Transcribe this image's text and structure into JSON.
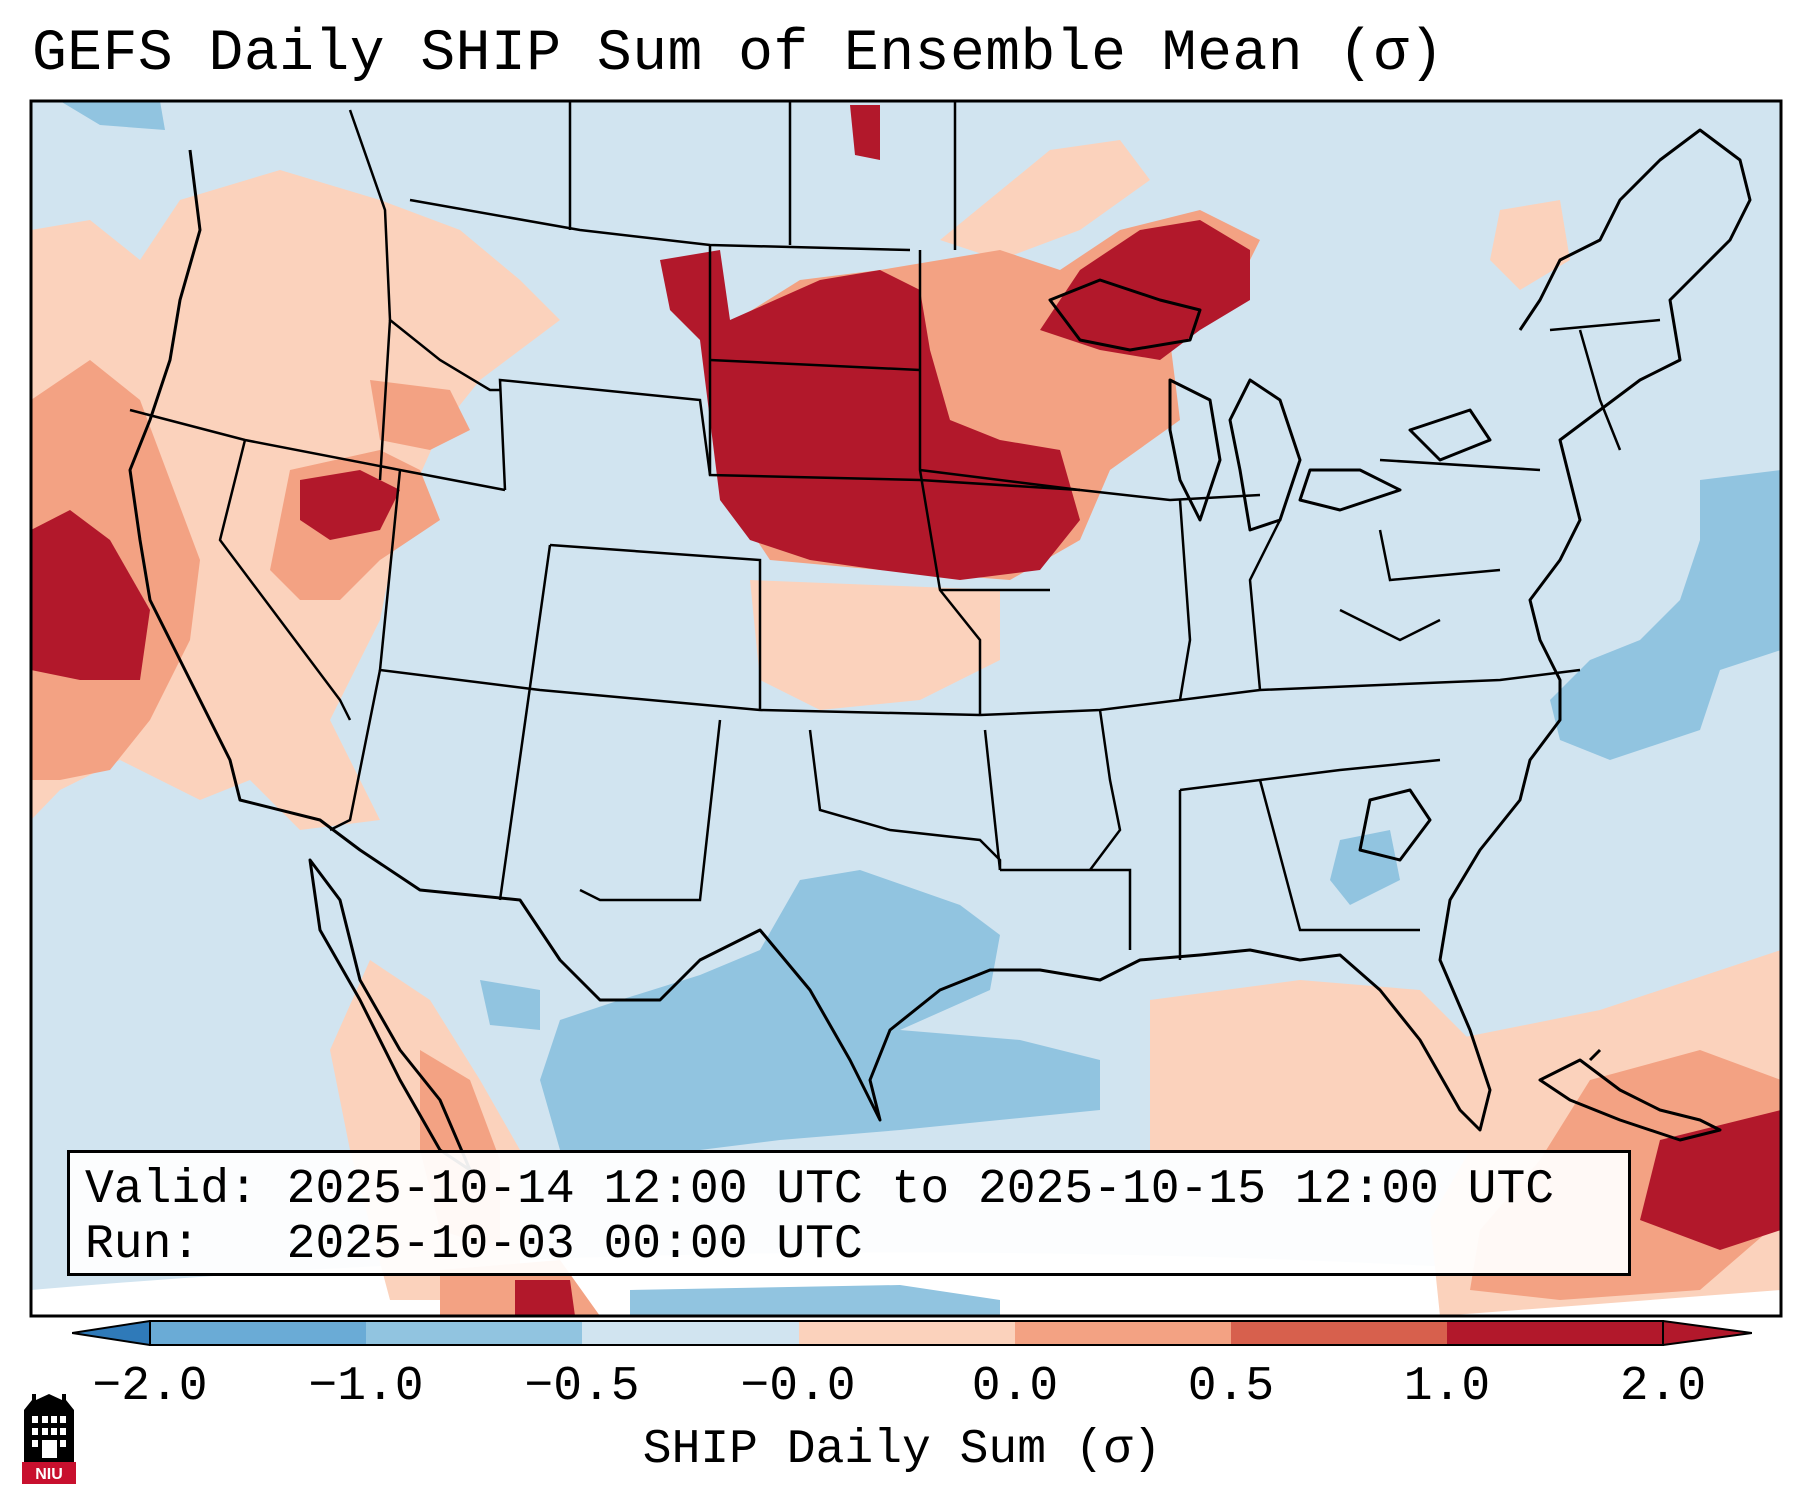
{
  "title": "GEFS Daily SHIP Sum of Ensemble Mean (σ)",
  "info": {
    "valid_label": "Valid:",
    "valid_value": "2025-10-14 12:00 UTC to 2025-10-15 12:00 UTC",
    "run_label": "Run:",
    "run_value": "2025-10-03 00:00 UTC"
  },
  "colorbar": {
    "label": "SHIP Daily Sum (σ)",
    "ticks": [
      "−2.0",
      "−1.0",
      "−0.5",
      "−0.0",
      "0.0",
      "0.5",
      "1.0",
      "2.0"
    ],
    "colors": [
      "#2f7ab9",
      "#6aabd6",
      "#91c4e0",
      "#d1e4f0",
      "#fbd2bc",
      "#f3a283",
      "#d7604d",
      "#b2182b"
    ]
  },
  "logo": {
    "text": "NIU"
  }
}
